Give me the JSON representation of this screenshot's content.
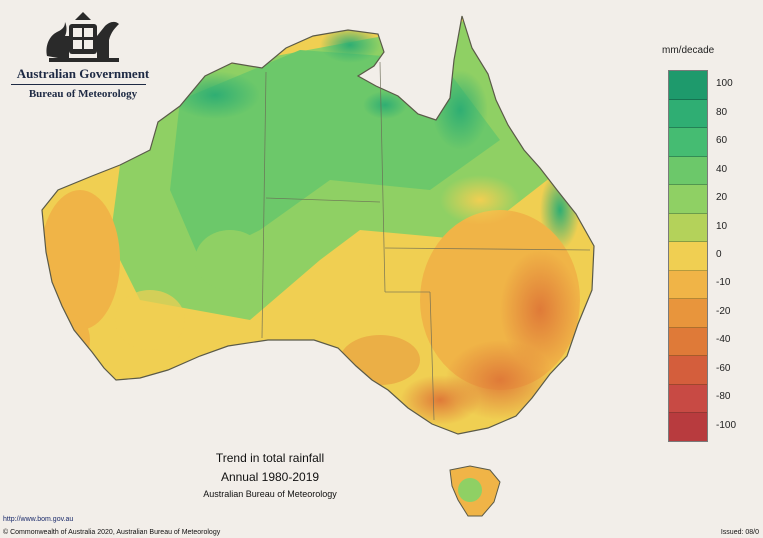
{
  "header": {
    "government": "Australian Government",
    "bureau": "Bureau of Meteorology"
  },
  "legend": {
    "unit": "mm/decade",
    "swatches": [
      "#1e9a6c",
      "#2fae73",
      "#45bc72",
      "#6cc86a",
      "#8fd064",
      "#b4d25a",
      "#f0cf52",
      "#f0b447",
      "#e8953c",
      "#df7a38",
      "#d45e3c",
      "#c84a44",
      "#b83b3e"
    ],
    "ticks": [
      "100",
      "80",
      "60",
      "40",
      "20",
      "10",
      "0",
      "-10",
      "-20",
      "-40",
      "-60",
      "-80",
      "-100"
    ]
  },
  "map_title": {
    "line1": "Trend in total rainfall",
    "line2": "Annual 1980-2019",
    "line3": "Australian Bureau of Meteorology"
  },
  "footer": {
    "url": "http://www.bom.gov.au",
    "copyright": "© Commonwealth of Australia 2020, Australian Bureau of Meteorology",
    "issued": "Issued: 08/0"
  }
}
